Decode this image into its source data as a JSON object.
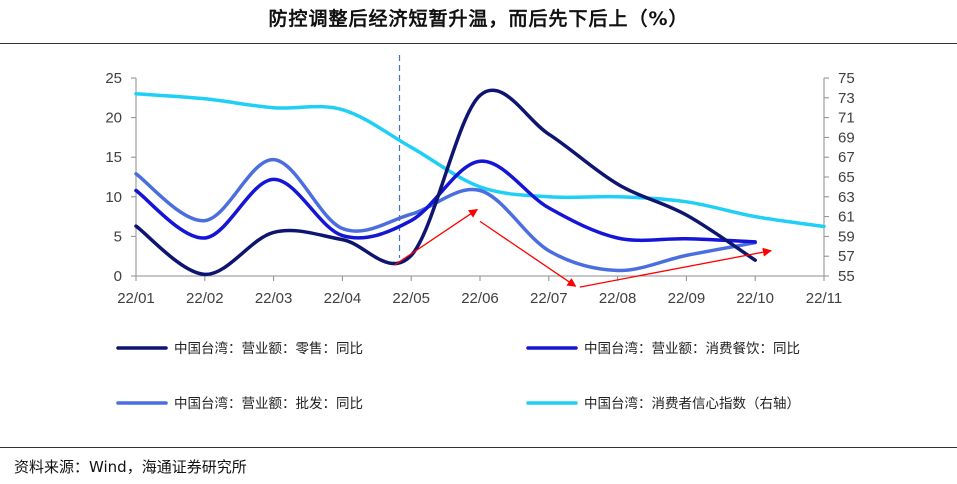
{
  "title": "防控调整后经济短暂升温，而后先下后上（%）",
  "source": "资料来源：Wind，海通证券研究所",
  "chart_data": {
    "type": "line",
    "title": "防控调整后经济短暂升温，而后先下后上（%）",
    "x_categories": [
      "22/01",
      "22/02",
      "22/03",
      "22/04",
      "22/05",
      "22/06",
      "22/07",
      "22/08",
      "22/09",
      "22/10",
      "22/11"
    ],
    "y_left": {
      "min": 0,
      "max": 25,
      "ticks": [
        0,
        5,
        10,
        15,
        20,
        25
      ]
    },
    "y_right": {
      "min": 55,
      "max": 75,
      "ticks": [
        55,
        57,
        59,
        61,
        63,
        65,
        67,
        69,
        71,
        73,
        75
      ]
    },
    "series": [
      {
        "name": "中国台湾：营业额：零售：同比",
        "axis": "left",
        "color": "#0d1570",
        "x": [
          0,
          1,
          2,
          3,
          4,
          5,
          6,
          7,
          8,
          9
        ],
        "values": [
          6.3,
          0.2,
          5.5,
          4.6,
          2.6,
          22.8,
          17.9,
          11.6,
          7.7,
          2.0
        ]
      },
      {
        "name": "中国台湾：营业额：消费餐饮：同比",
        "axis": "left",
        "color": "#1515d8",
        "x": [
          0,
          1,
          2,
          3,
          4,
          5,
          6,
          7,
          8,
          9
        ],
        "values": [
          10.8,
          4.8,
          12.2,
          5.1,
          7.0,
          14.5,
          8.6,
          4.8,
          4.7,
          4.3
        ]
      },
      {
        "name": "中国台湾：营业额：批发：同比",
        "axis": "left",
        "color": "#4a6ee0",
        "x": [
          0,
          1,
          2,
          3,
          4,
          5,
          6,
          7,
          8,
          9
        ],
        "values": [
          12.9,
          7.0,
          14.7,
          6.0,
          7.8,
          10.8,
          3.2,
          0.7,
          2.6,
          4.2
        ]
      },
      {
        "name": "中国台湾：消费者信心指数（右轴）",
        "axis": "right",
        "color": "#1fcff5",
        "x": [
          0,
          1,
          2,
          3,
          4,
          5,
          6,
          7,
          8,
          9,
          10
        ],
        "values": [
          73.4,
          72.9,
          72.0,
          71.8,
          68.0,
          64.0,
          63.0,
          63.0,
          62.5,
          61.0,
          60.0
        ]
      }
    ],
    "vline_at": 3.83,
    "annotations": [
      {
        "type": "arrow",
        "from": [
          3.76,
          1.4
        ],
        "to": [
          4.96,
          8.4
        ],
        "color": "#ff0000"
      },
      {
        "type": "arrow",
        "from": [
          5.0,
          6.9
        ],
        "to": [
          6.39,
          -1.3
        ],
        "color": "#ff0000"
      },
      {
        "type": "arrow",
        "from": [
          6.45,
          -1.4
        ],
        "to": [
          9.23,
          3.2
        ],
        "color": "#ff0000"
      }
    ],
    "legend": [
      "中国台湾：营业额：零售：同比",
      "中国台湾：营业额：消费餐饮：同比",
      "中国台湾：营业额：批发：同比",
      "中国台湾：消费者信心指数（右轴）"
    ]
  }
}
